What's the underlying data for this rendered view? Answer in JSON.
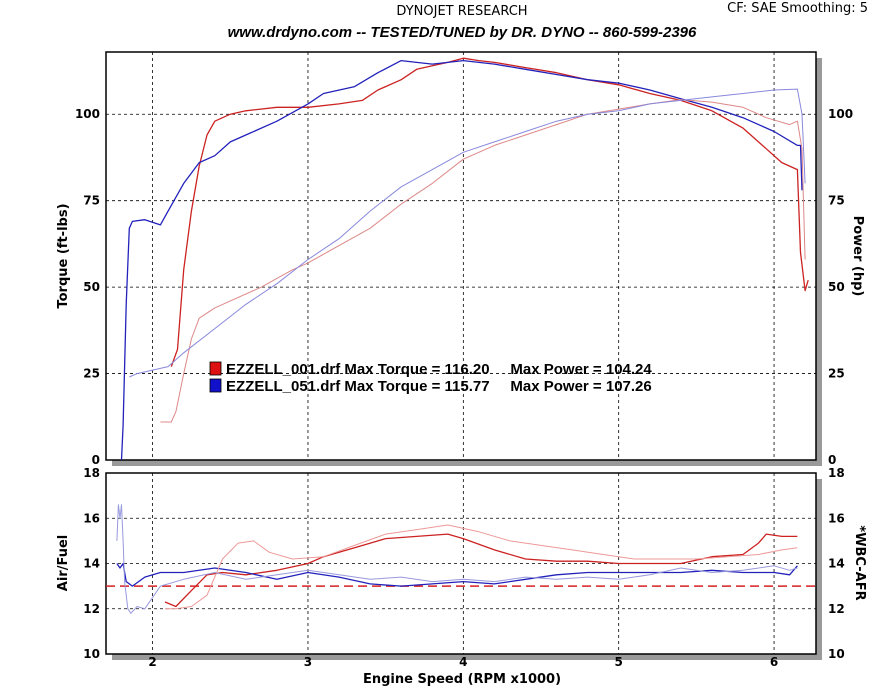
{
  "header": {
    "company": "DYNOJET RESEARCH",
    "correction": "CF: SAE  Smoothing: 5",
    "banner": "www.drdyno.com  --  TESTED/TUNED by DR. DYNO -- 860-599-2396"
  },
  "colors": {
    "run1": "#cc2222",
    "run2": "#2222bb",
    "afr_target": "#d42020",
    "grid": "#000000"
  },
  "chart_data": [
    {
      "type": "line",
      "id": "power-torque",
      "xlabel": "",
      "ylabel": "Torque (ft-lbs)",
      "ylabel_right": "Power (hp)",
      "xlim": [
        1.7,
        6.27
      ],
      "ylim": [
        0,
        118
      ],
      "x_ticks": [
        2,
        3,
        4,
        5,
        6
      ],
      "y_ticks": [
        0,
        25,
        50,
        75,
        100
      ],
      "grid": true,
      "legend": [
        {
          "label": "EZZELL_001.drf Max Torque = 116.20     Max Power = 104.24",
          "color": "#cc2222"
        },
        {
          "label": "EZZELL_051.drf Max Torque = 115.77     Max Power = 107.26",
          "color": "#2222bb"
        }
      ],
      "series": [
        {
          "run": 1,
          "measure": "torque",
          "color": "#cc2222",
          "width": 1.3,
          "points": [
            [
              2.12,
              27
            ],
            [
              2.16,
              32
            ],
            [
              2.2,
              55
            ],
            [
              2.25,
              72
            ],
            [
              2.3,
              85
            ],
            [
              2.35,
              94
            ],
            [
              2.4,
              98
            ],
            [
              2.5,
              100
            ],
            [
              2.6,
              101
            ],
            [
              2.8,
              102
            ],
            [
              3.0,
              102
            ],
            [
              3.2,
              103
            ],
            [
              3.35,
              104
            ],
            [
              3.45,
              107
            ],
            [
              3.5,
              108
            ],
            [
              3.6,
              110
            ],
            [
              3.7,
              113
            ],
            [
              3.8,
              114
            ],
            [
              3.9,
              115
            ],
            [
              4.0,
              116.2
            ],
            [
              4.1,
              115.5
            ],
            [
              4.2,
              115
            ],
            [
              4.4,
              113.5
            ],
            [
              4.6,
              112
            ],
            [
              4.8,
              110
            ],
            [
              5.0,
              108.5
            ],
            [
              5.2,
              106
            ],
            [
              5.4,
              104
            ],
            [
              5.6,
              101
            ],
            [
              5.8,
              96
            ],
            [
              5.95,
              90
            ],
            [
              6.05,
              86
            ],
            [
              6.15,
              84
            ],
            [
              6.17,
              60
            ],
            [
              6.2,
              49
            ],
            [
              6.22,
              52
            ]
          ]
        },
        {
          "run": 2,
          "measure": "torque",
          "color": "#2222bb",
          "width": 1.3,
          "points": [
            [
              1.8,
              0
            ],
            [
              1.81,
              10
            ],
            [
              1.83,
              45
            ],
            [
              1.85,
              67
            ],
            [
              1.87,
              69
            ],
            [
              1.95,
              69.5
            ],
            [
              2.05,
              68
            ],
            [
              2.1,
              72
            ],
            [
              2.2,
              80
            ],
            [
              2.3,
              86
            ],
            [
              2.4,
              88
            ],
            [
              2.5,
              92
            ],
            [
              2.6,
              94
            ],
            [
              2.8,
              98
            ],
            [
              3.0,
              103
            ],
            [
              3.1,
              106
            ],
            [
              3.3,
              108
            ],
            [
              3.45,
              112
            ],
            [
              3.6,
              115.5
            ],
            [
              3.7,
              115
            ],
            [
              3.8,
              114.5
            ],
            [
              4.0,
              115.5
            ],
            [
              4.2,
              114.5
            ],
            [
              4.4,
              113
            ],
            [
              4.6,
              111.5
            ],
            [
              4.8,
              110
            ],
            [
              5.0,
              109
            ],
            [
              5.2,
              107
            ],
            [
              5.4,
              104.5
            ],
            [
              5.6,
              102
            ],
            [
              5.8,
              99
            ],
            [
              6.0,
              95
            ],
            [
              6.15,
              91
            ],
            [
              6.17,
              91
            ],
            [
              6.18,
              78
            ]
          ]
        },
        {
          "run": 1,
          "measure": "power",
          "color": "#dd8888",
          "width": 1.0,
          "points": [
            [
              2.05,
              11
            ],
            [
              2.12,
              11
            ],
            [
              2.15,
              14
            ],
            [
              2.2,
              25
            ],
            [
              2.25,
              35
            ],
            [
              2.3,
              41
            ],
            [
              2.4,
              44
            ],
            [
              2.5,
              46
            ],
            [
              2.7,
              50
            ],
            [
              2.9,
              55
            ],
            [
              3.0,
              57
            ],
            [
              3.2,
              62
            ],
            [
              3.4,
              67
            ],
            [
              3.6,
              74
            ],
            [
              3.8,
              80
            ],
            [
              4.0,
              87
            ],
            [
              4.2,
              91
            ],
            [
              4.4,
              94
            ],
            [
              4.6,
              97
            ],
            [
              4.8,
              100
            ],
            [
              5.0,
              101.5
            ],
            [
              5.2,
              103
            ],
            [
              5.4,
              104.24
            ],
            [
              5.6,
              103.5
            ],
            [
              5.8,
              102
            ],
            [
              5.95,
              99
            ],
            [
              6.1,
              97
            ],
            [
              6.15,
              98
            ],
            [
              6.18,
              90
            ],
            [
              6.2,
              58
            ]
          ]
        },
        {
          "run": 2,
          "measure": "power",
          "color": "#8888dd",
          "width": 1.0,
          "points": [
            [
              1.85,
              24
            ],
            [
              1.9,
              25
            ],
            [
              2.0,
              26
            ],
            [
              2.1,
              27
            ],
            [
              2.2,
              31
            ],
            [
              2.4,
              38
            ],
            [
              2.6,
              45
            ],
            [
              2.8,
              51
            ],
            [
              3.0,
              58
            ],
            [
              3.2,
              64
            ],
            [
              3.4,
              72
            ],
            [
              3.6,
              79
            ],
            [
              3.8,
              84
            ],
            [
              4.0,
              89
            ],
            [
              4.2,
              92
            ],
            [
              4.4,
              95
            ],
            [
              4.6,
              98
            ],
            [
              4.8,
              100
            ],
            [
              5.0,
              101
            ],
            [
              5.2,
              103
            ],
            [
              5.4,
              104
            ],
            [
              5.6,
              105
            ],
            [
              5.8,
              106
            ],
            [
              6.0,
              107
            ],
            [
              6.15,
              107.26
            ],
            [
              6.18,
              100
            ],
            [
              6.2,
              80
            ]
          ]
        }
      ]
    },
    {
      "type": "line",
      "id": "air-fuel",
      "xlabel": "Engine Speed (RPM x1000)",
      "ylabel": "Air/Fuel",
      "ylabel_right": "*WBC-AFR",
      "xlim": [
        1.7,
        6.27
      ],
      "ylim": [
        10,
        18
      ],
      "x_ticks": [
        2,
        3,
        4,
        5,
        6
      ],
      "y_ticks": [
        10,
        12,
        14,
        16,
        18
      ],
      "grid": true,
      "target": {
        "value": 13,
        "color": "#d42020"
      },
      "series": [
        {
          "run": 1,
          "measure": "afr",
          "color": "#cc2222",
          "width": 1.3,
          "points": [
            [
              2.08,
              12.3
            ],
            [
              2.15,
              12.1
            ],
            [
              2.25,
              12.8
            ],
            [
              2.35,
              13.5
            ],
            [
              2.45,
              13.6
            ],
            [
              2.6,
              13.5
            ],
            [
              2.8,
              13.7
            ],
            [
              3.0,
              14.0
            ],
            [
              3.1,
              14.3
            ],
            [
              3.3,
              14.7
            ],
            [
              3.5,
              15.1
            ],
            [
              3.7,
              15.2
            ],
            [
              3.9,
              15.3
            ],
            [
              4.0,
              15.1
            ],
            [
              4.2,
              14.6
            ],
            [
              4.4,
              14.2
            ],
            [
              4.6,
              14.1
            ],
            [
              4.8,
              14.1
            ],
            [
              5.0,
              14.0
            ],
            [
              5.2,
              14.0
            ],
            [
              5.4,
              14.0
            ],
            [
              5.6,
              14.3
            ],
            [
              5.8,
              14.4
            ],
            [
              5.9,
              14.9
            ],
            [
              5.95,
              15.3
            ],
            [
              6.05,
              15.2
            ],
            [
              6.15,
              15.2
            ]
          ]
        },
        {
          "run": 2,
          "measure": "afr",
          "color": "#2222bb",
          "width": 1.3,
          "points": [
            [
              1.77,
              14.0
            ],
            [
              1.79,
              13.8
            ],
            [
              1.81,
              14.0
            ],
            [
              1.83,
              13.2
            ],
            [
              1.87,
              13.0
            ],
            [
              1.95,
              13.4
            ],
            [
              2.05,
              13.6
            ],
            [
              2.2,
              13.6
            ],
            [
              2.4,
              13.8
            ],
            [
              2.6,
              13.6
            ],
            [
              2.8,
              13.3
            ],
            [
              3.0,
              13.6
            ],
            [
              3.2,
              13.4
            ],
            [
              3.4,
              13.1
            ],
            [
              3.6,
              13.0
            ],
            [
              3.8,
              13.1
            ],
            [
              4.0,
              13.2
            ],
            [
              4.2,
              13.1
            ],
            [
              4.4,
              13.3
            ],
            [
              4.6,
              13.5
            ],
            [
              4.8,
              13.6
            ],
            [
              5.0,
              13.6
            ],
            [
              5.2,
              13.6
            ],
            [
              5.4,
              13.6
            ],
            [
              5.6,
              13.7
            ],
            [
              5.8,
              13.6
            ],
            [
              6.0,
              13.6
            ],
            [
              6.1,
              13.5
            ],
            [
              6.15,
              13.9
            ]
          ]
        },
        {
          "run": 1,
          "measure": "afr-wbc",
          "color": "#ee9999",
          "width": 1.0,
          "points": [
            [
              2.08,
              12.0
            ],
            [
              2.15,
              12.0
            ],
            [
              2.25,
              12.1
            ],
            [
              2.35,
              12.6
            ],
            [
              2.45,
              14.2
            ],
            [
              2.55,
              14.9
            ],
            [
              2.65,
              15.0
            ],
            [
              2.75,
              14.5
            ],
            [
              2.9,
              14.2
            ],
            [
              3.1,
              14.3
            ],
            [
              3.3,
              14.8
            ],
            [
              3.5,
              15.3
            ],
            [
              3.7,
              15.5
            ],
            [
              3.9,
              15.7
            ],
            [
              4.1,
              15.4
            ],
            [
              4.3,
              15.0
            ],
            [
              4.5,
              14.8
            ],
            [
              4.7,
              14.6
            ],
            [
              4.9,
              14.4
            ],
            [
              5.1,
              14.2
            ],
            [
              5.3,
              14.2
            ],
            [
              5.5,
              14.2
            ],
            [
              5.7,
              14.3
            ],
            [
              5.9,
              14.4
            ],
            [
              6.05,
              14.6
            ],
            [
              6.15,
              14.7
            ]
          ]
        },
        {
          "run": 2,
          "measure": "afr-wbc",
          "color": "#9999dd",
          "width": 1.0,
          "points": [
            [
              1.77,
              15.0
            ],
            [
              1.78,
              16.6
            ],
            [
              1.79,
              16.0
            ],
            [
              1.8,
              16.6
            ],
            [
              1.81,
              15.0
            ],
            [
              1.82,
              13.2
            ],
            [
              1.84,
              12.0
            ],
            [
              1.86,
              11.8
            ],
            [
              1.9,
              12.1
            ],
            [
              1.95,
              12.0
            ],
            [
              2.05,
              13.0
            ],
            [
              2.2,
              13.3
            ],
            [
              2.4,
              13.6
            ],
            [
              2.6,
              13.3
            ],
            [
              2.8,
              13.5
            ],
            [
              3.0,
              13.7
            ],
            [
              3.2,
              13.5
            ],
            [
              3.4,
              13.3
            ],
            [
              3.6,
              13.4
            ],
            [
              3.8,
              13.2
            ],
            [
              4.0,
              13.3
            ],
            [
              4.2,
              13.2
            ],
            [
              4.4,
              13.4
            ],
            [
              4.6,
              13.3
            ],
            [
              4.8,
              13.4
            ],
            [
              5.0,
              13.3
            ],
            [
              5.2,
              13.5
            ],
            [
              5.4,
              13.8
            ],
            [
              5.6,
              13.6
            ],
            [
              5.8,
              13.7
            ],
            [
              6.0,
              13.9
            ],
            [
              6.1,
              13.7
            ],
            [
              6.15,
              13.8
            ]
          ]
        }
      ]
    }
  ]
}
